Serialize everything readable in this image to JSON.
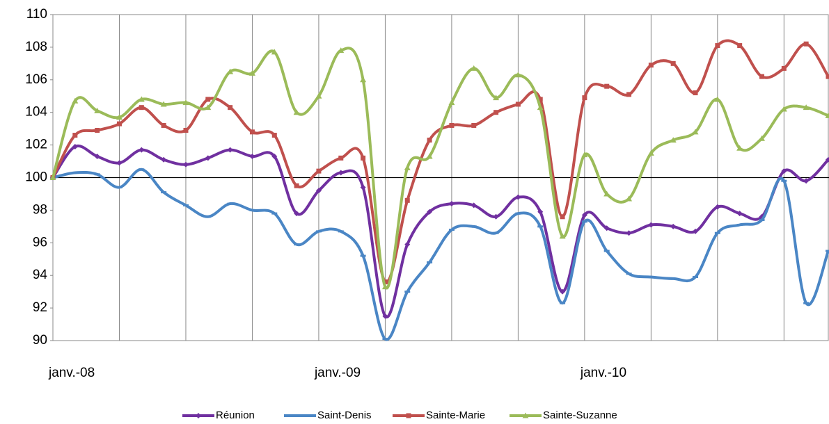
{
  "chart_data": {
    "type": "line",
    "categories": [
      "janv.-08",
      null,
      null,
      null,
      null,
      null,
      null,
      null,
      null,
      null,
      null,
      null,
      "janv.-09",
      null,
      null,
      null,
      null,
      null,
      null,
      null,
      null,
      null,
      null,
      null,
      "janv.-10",
      null,
      null,
      null,
      null,
      null,
      null,
      null,
      null,
      null,
      null,
      null
    ],
    "series": [
      {
        "name": "Réunion",
        "color": "#7030a0",
        "marker": "diamond",
        "values": [
          100,
          101.9,
          101.3,
          100.9,
          101.7,
          101.1,
          100.8,
          101.2,
          101.7,
          101.3,
          101.3,
          97.8,
          99.2,
          100.3,
          99.4,
          91.5,
          95.9,
          97.9,
          98.4,
          98.3,
          97.6,
          98.8,
          97.9,
          93.0,
          97.7,
          96.9,
          96.6,
          97.1,
          97.0,
          96.7,
          98.2,
          97.8,
          97.6,
          100.4,
          99.8,
          101.1
        ]
      },
      {
        "name": "Saint-Denis",
        "color": "#4a86c5",
        "marker": "dash",
        "values": [
          100,
          100.3,
          100.2,
          99.4,
          100.5,
          99.1,
          98.3,
          97.6,
          98.4,
          98.0,
          97.8,
          95.9,
          96.7,
          96.7,
          95.2,
          90.1,
          93.0,
          94.8,
          96.8,
          97.0,
          96.6,
          97.8,
          97.0,
          92.3,
          97.3,
          95.5,
          94.1,
          93.9,
          93.8,
          93.9,
          96.6,
          97.1,
          97.4,
          99.8,
          92.3,
          95.5
        ]
      },
      {
        "name": "Sainte-Marie",
        "color": "#c0504d",
        "marker": "square",
        "values": [
          100,
          102.6,
          102.9,
          103.3,
          104.3,
          103.2,
          102.9,
          104.8,
          104.3,
          102.8,
          102.6,
          99.5,
          100.4,
          101.2,
          101.2,
          93.6,
          98.6,
          102.3,
          103.2,
          103.2,
          104.0,
          104.5,
          104.8,
          97.6,
          104.9,
          105.6,
          105.1,
          106.9,
          107.0,
          105.2,
          108.1,
          108.1,
          106.2,
          106.7,
          108.2,
          106.2
        ]
      },
      {
        "name": "Sainte-Suzanne",
        "color": "#9bbb59",
        "marker": "triangle",
        "values": [
          100,
          104.7,
          104.1,
          103.7,
          104.8,
          104.5,
          104.6,
          104.3,
          106.5,
          106.4,
          107.7,
          104.0,
          105.0,
          107.8,
          106.0,
          93.3,
          100.6,
          101.3,
          104.6,
          106.7,
          104.9,
          106.3,
          104.3,
          96.4,
          101.4,
          99.0,
          98.7,
          101.5,
          102.3,
          102.8,
          104.8,
          101.8,
          102.4,
          104.2,
          104.3,
          103.8
        ]
      }
    ],
    "ylim": [
      90,
      110
    ],
    "yticks": [
      90,
      92,
      94,
      96,
      98,
      100,
      102,
      104,
      106,
      108,
      110
    ],
    "baseline": 100,
    "grid": "x",
    "smooth": true,
    "legend": "bottom"
  }
}
